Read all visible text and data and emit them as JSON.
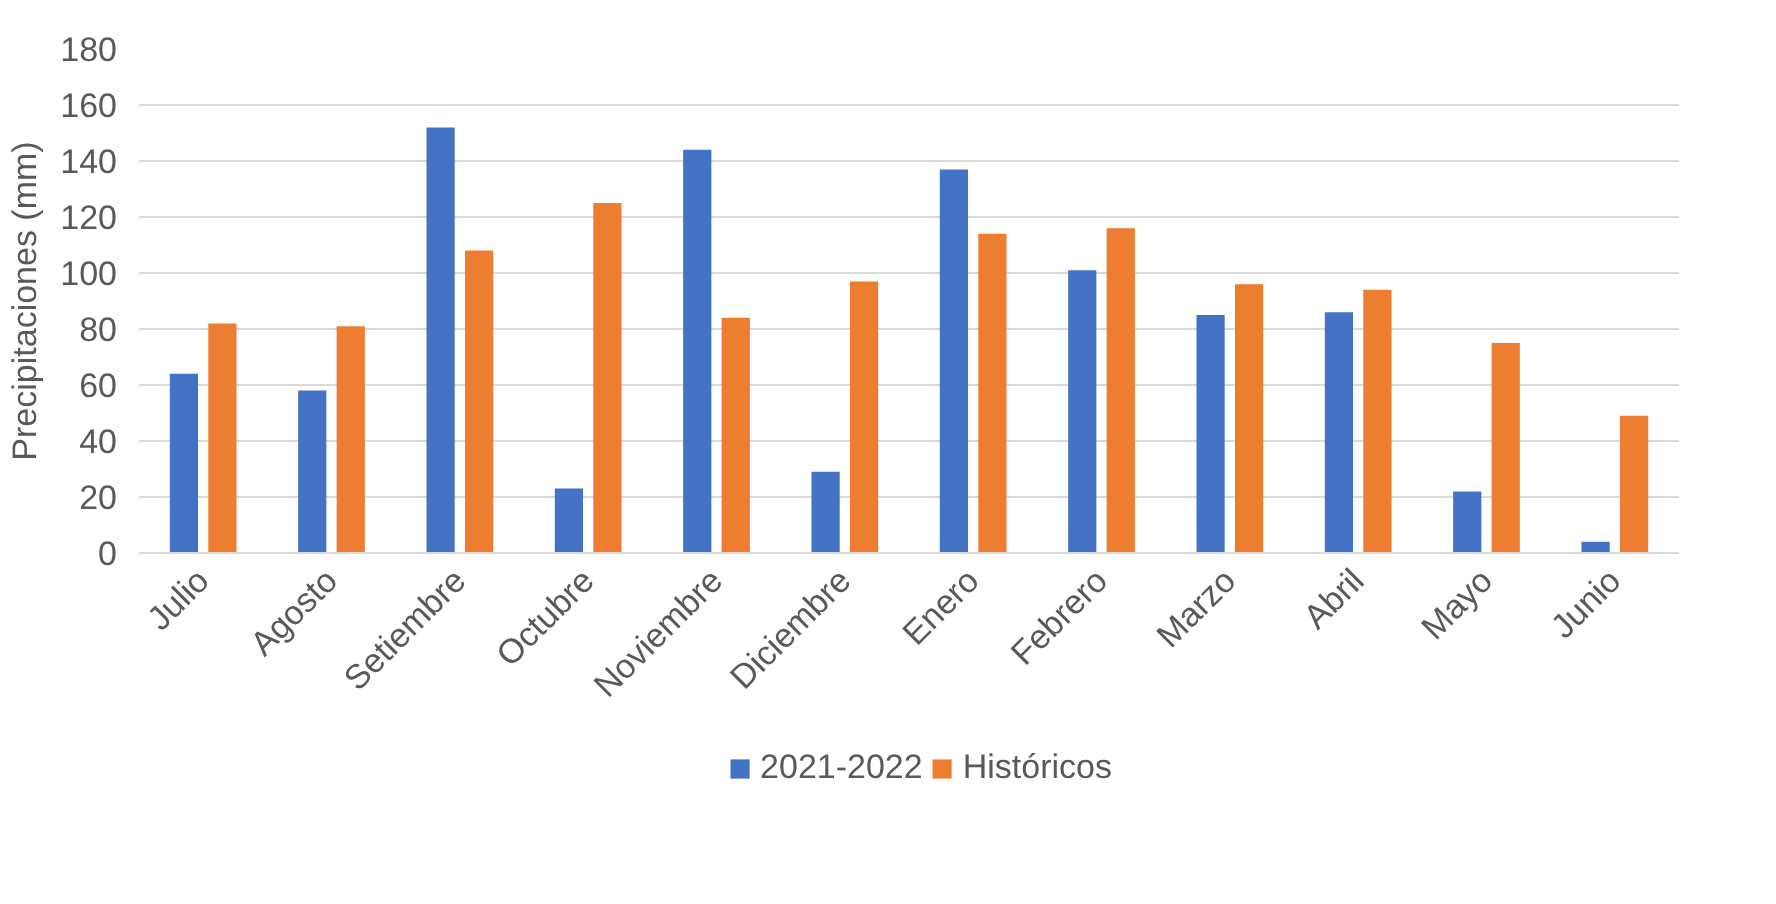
{
  "chart_data": {
    "type": "bar",
    "ylabel": "Precipitaciones (mm)",
    "categories": [
      "Julio",
      "Agosto",
      "Setiembre",
      "Octubre",
      "Noviembre",
      "Diciembre",
      "Enero",
      "Febrero",
      "Marzo",
      "Abril",
      "Mayo",
      "Junio"
    ],
    "series": [
      {
        "name": "2021-2022",
        "color": "#4472c4",
        "values": [
          64,
          58,
          152,
          23,
          144,
          29,
          137,
          101,
          85,
          86,
          22,
          4
        ]
      },
      {
        "name": "Históricos",
        "color": "#ed7d31",
        "values": [
          82,
          81,
          108,
          125,
          84,
          97,
          114,
          116,
          96,
          94,
          75,
          49
        ]
      }
    ],
    "ylim": [
      0,
      180
    ],
    "yticks": [
      0,
      20,
      40,
      60,
      80,
      100,
      120,
      140,
      160,
      180
    ],
    "grid": "y",
    "legend": "bottom"
  }
}
